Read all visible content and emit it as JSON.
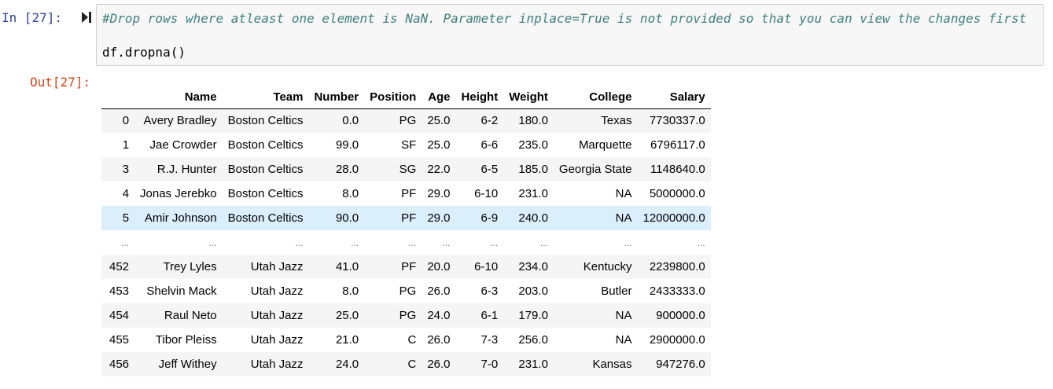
{
  "cell": {
    "in_prompt": "In [27]:",
    "out_prompt": "Out[27]:",
    "code_comment": "#Drop rows where atleast one element is NaN. Parameter inplace=True is not provided so that you can view the changes first",
    "code": "df.dropna()"
  },
  "table": {
    "columns": [
      "",
      "Name",
      "Team",
      "Number",
      "Position",
      "Age",
      "Height",
      "Weight",
      "College",
      "Salary"
    ],
    "rows": [
      {
        "index": "0",
        "name": "Avery Bradley",
        "team": "Boston Celtics",
        "number": "0.0",
        "position": "PG",
        "age": "25.0",
        "height": "6-2",
        "weight": "180.0",
        "college": "Texas",
        "salary": "7730337.0"
      },
      {
        "index": "1",
        "name": "Jae Crowder",
        "team": "Boston Celtics",
        "number": "99.0",
        "position": "SF",
        "age": "25.0",
        "height": "6-6",
        "weight": "235.0",
        "college": "Marquette",
        "salary": "6796117.0"
      },
      {
        "index": "3",
        "name": "R.J. Hunter",
        "team": "Boston Celtics",
        "number": "28.0",
        "position": "SG",
        "age": "22.0",
        "height": "6-5",
        "weight": "185.0",
        "college": "Georgia State",
        "salary": "1148640.0"
      },
      {
        "index": "4",
        "name": "Jonas Jerebko",
        "team": "Boston Celtics",
        "number": "8.0",
        "position": "PF",
        "age": "29.0",
        "height": "6-10",
        "weight": "231.0",
        "college": "NA",
        "salary": "5000000.0"
      },
      {
        "index": "5",
        "name": "Amir Johnson",
        "team": "Boston Celtics",
        "number": "90.0",
        "position": "PF",
        "age": "29.0",
        "height": "6-9",
        "weight": "240.0",
        "college": "NA",
        "salary": "12000000.0"
      },
      {
        "index": "...",
        "name": "...",
        "team": "...",
        "number": "...",
        "position": "...",
        "age": "...",
        "height": "...",
        "weight": "...",
        "college": "...",
        "salary": "..."
      },
      {
        "index": "452",
        "name": "Trey Lyles",
        "team": "Utah Jazz",
        "number": "41.0",
        "position": "PF",
        "age": "20.0",
        "height": "6-10",
        "weight": "234.0",
        "college": "Kentucky",
        "salary": "2239800.0"
      },
      {
        "index": "453",
        "name": "Shelvin Mack",
        "team": "Utah Jazz",
        "number": "8.0",
        "position": "PG",
        "age": "26.0",
        "height": "6-3",
        "weight": "203.0",
        "college": "Butler",
        "salary": "2433333.0"
      },
      {
        "index": "454",
        "name": "Raul Neto",
        "team": "Utah Jazz",
        "number": "25.0",
        "position": "PG",
        "age": "24.0",
        "height": "6-1",
        "weight": "179.0",
        "college": "NA",
        "salary": "900000.0"
      },
      {
        "index": "455",
        "name": "Tibor Pleiss",
        "team": "Utah Jazz",
        "number": "21.0",
        "position": "C",
        "age": "26.0",
        "height": "7-3",
        "weight": "256.0",
        "college": "NA",
        "salary": "2900000.0"
      },
      {
        "index": "456",
        "name": "Jeff Withey",
        "team": "Utah Jazz",
        "number": "24.0",
        "position": "C",
        "age": "26.0",
        "height": "7-0",
        "weight": "231.0",
        "college": "Kansas",
        "salary": "947276.0"
      }
    ],
    "highlighted_row_index": "5"
  }
}
